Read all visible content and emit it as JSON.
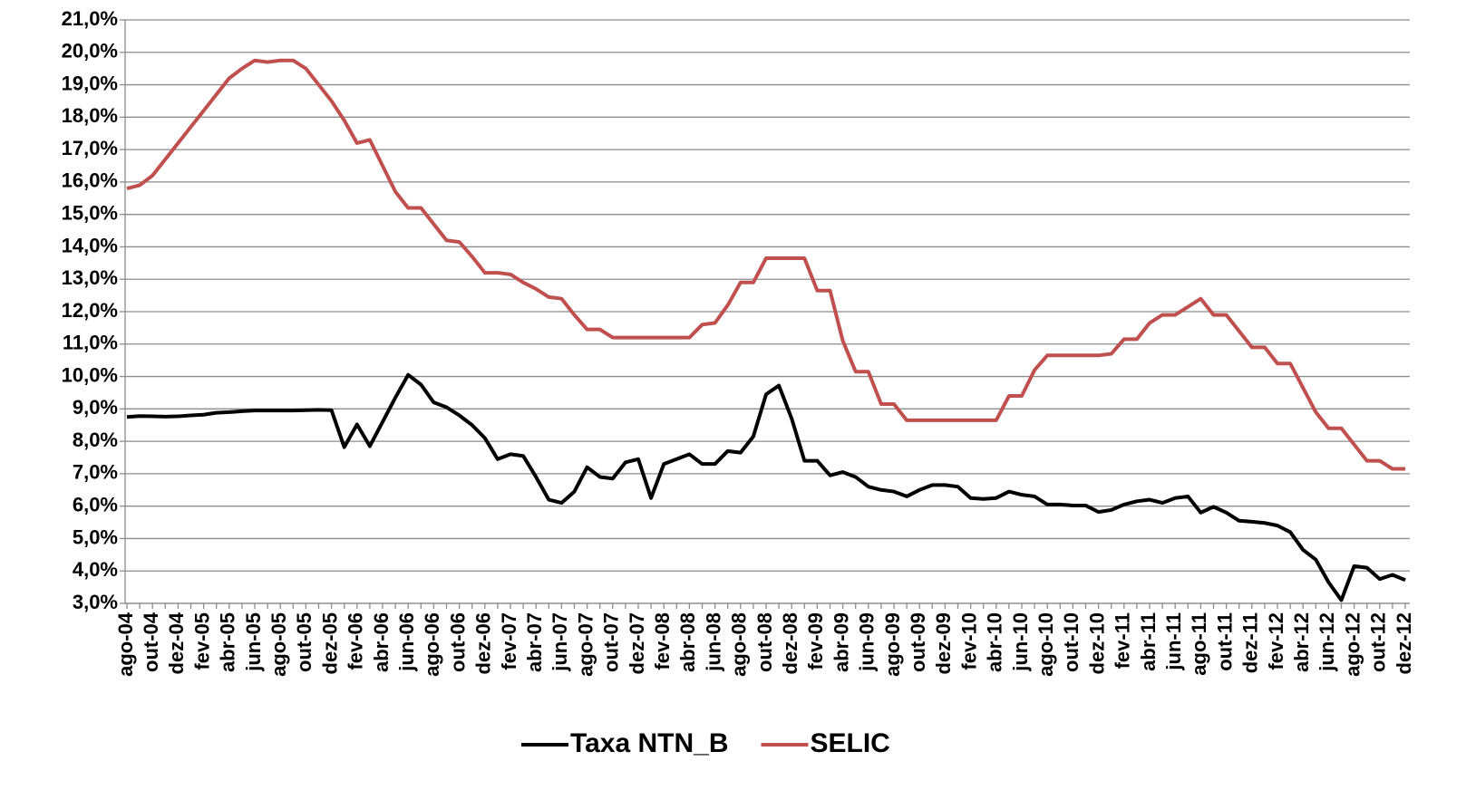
{
  "chart_data": {
    "type": "line",
    "categories": [
      "ago-04",
      null,
      "out-04",
      null,
      "dez-04",
      null,
      "fev-05",
      null,
      "abr-05",
      null,
      "jun-05",
      null,
      "ago-05",
      null,
      "out-05",
      null,
      "dez-05",
      null,
      "fev-06",
      null,
      "abr-06",
      null,
      "jun-06",
      null,
      "ago-06",
      null,
      "out-06",
      null,
      "dez-06",
      null,
      "fev-07",
      null,
      "abr-07",
      null,
      "jun-07",
      null,
      "ago-07",
      null,
      "out-07",
      null,
      "dez-07",
      null,
      "fev-08",
      null,
      "abr-08",
      null,
      "jun-08",
      null,
      "ago-08",
      null,
      "out-08",
      null,
      "dez-08",
      null,
      "fev-09",
      null,
      "abr-09",
      null,
      "jun-09",
      null,
      "ago-09",
      null,
      "out-09",
      null,
      "dez-09",
      null,
      "fev-10",
      null,
      "abr-10",
      null,
      "jun-10",
      null,
      "ago-10",
      null,
      "out-10",
      null,
      "dez-10",
      null,
      "fev-11",
      null,
      "abr-11",
      null,
      "jun-11",
      null,
      "ago-11",
      null,
      "out-11",
      null,
      "dez-11",
      null,
      "fev-12",
      null,
      "abr-12",
      null,
      "jun-12",
      null,
      "ago-12",
      null,
      "out-12",
      null,
      "dez-12"
    ],
    "series": [
      {
        "name": "Taxa NTN_B",
        "color": "#000000",
        "values": [
          8.75,
          8.78,
          8.77,
          8.76,
          8.77,
          8.8,
          8.82,
          8.88,
          8.9,
          8.93,
          8.95,
          8.95,
          8.95,
          8.95,
          8.96,
          8.97,
          8.96,
          7.82,
          8.52,
          7.85,
          8.6,
          9.35,
          10.05,
          9.75,
          9.2,
          9.05,
          8.8,
          8.5,
          8.1,
          7.45,
          7.6,
          7.55,
          6.9,
          6.2,
          6.1,
          6.45,
          7.2,
          6.9,
          6.85,
          7.35,
          7.45,
          6.25,
          7.3,
          7.45,
          7.6,
          7.3,
          7.3,
          7.7,
          7.65,
          8.15,
          9.45,
          9.72,
          8.7,
          7.4,
          7.4,
          6.95,
          7.05,
          6.9,
          6.6,
          6.5,
          6.45,
          6.3,
          6.5,
          6.65,
          6.65,
          6.6,
          6.25,
          6.22,
          6.25,
          6.45,
          6.35,
          6.3,
          6.05,
          6.05,
          6.02,
          6.02,
          5.82,
          5.88,
          6.05,
          6.15,
          6.2,
          6.1,
          6.25,
          6.3,
          5.8,
          5.98,
          5.8,
          5.55,
          5.52,
          5.48,
          5.4,
          5.2,
          4.65,
          4.35,
          3.65,
          3.1,
          4.15,
          4.1,
          3.75,
          3.88,
          3.72
        ]
      },
      {
        "name": "SELIC",
        "color": "#c0504d",
        "values": [
          15.8,
          15.9,
          16.2,
          16.7,
          17.2,
          17.7,
          18.2,
          18.7,
          19.2,
          19.5,
          19.75,
          19.7,
          19.75,
          19.75,
          19.5,
          19.0,
          18.5,
          17.9,
          17.2,
          17.3,
          16.5,
          15.7,
          15.2,
          15.2,
          14.7,
          14.2,
          14.15,
          13.7,
          13.2,
          13.2,
          13.15,
          12.9,
          12.7,
          12.45,
          12.4,
          11.9,
          11.45,
          11.45,
          11.2,
          11.2,
          11.2,
          11.2,
          11.2,
          11.2,
          11.2,
          11.6,
          11.65,
          12.2,
          12.9,
          12.9,
          13.65,
          13.65,
          13.65,
          13.65,
          12.65,
          12.65,
          11.1,
          10.15,
          10.15,
          9.15,
          9.15,
          8.65,
          8.65,
          8.65,
          8.65,
          8.65,
          8.65,
          8.65,
          8.65,
          9.4,
          9.4,
          10.2,
          10.65,
          10.65,
          10.65,
          10.65,
          10.65,
          10.7,
          11.15,
          11.15,
          11.65,
          11.9,
          11.9,
          12.15,
          12.4,
          11.9,
          11.9,
          11.4,
          10.9,
          10.9,
          10.4,
          10.4,
          9.65,
          8.9,
          8.4,
          8.4,
          7.9,
          7.4,
          7.4,
          7.15,
          7.15
        ]
      }
    ],
    "ylim": [
      3,
      21
    ],
    "yticks": [
      {
        "value": 3,
        "label": "3,0%"
      },
      {
        "value": 4,
        "label": "4,0%"
      },
      {
        "value": 5,
        "label": "5,0%"
      },
      {
        "value": 6,
        "label": "6,0%"
      },
      {
        "value": 7,
        "label": "7,0%"
      },
      {
        "value": 8,
        "label": "8,0%"
      },
      {
        "value": 9,
        "label": "9,0%"
      },
      {
        "value": 10,
        "label": "10,0%"
      },
      {
        "value": 11,
        "label": "11,0%"
      },
      {
        "value": 12,
        "label": "12,0%"
      },
      {
        "value": 13,
        "label": "13,0%"
      },
      {
        "value": 14,
        "label": "14,0%"
      },
      {
        "value": 15,
        "label": "15,0%"
      },
      {
        "value": 16,
        "label": "16,0%"
      },
      {
        "value": 17,
        "label": "17,0%"
      },
      {
        "value": 18,
        "label": "18,0%"
      },
      {
        "value": 19,
        "label": "19,0%"
      },
      {
        "value": 20,
        "label": "20,0%"
      },
      {
        "value": 21,
        "label": "21,0%"
      }
    ],
    "grid": true,
    "legend": "bottom"
  }
}
